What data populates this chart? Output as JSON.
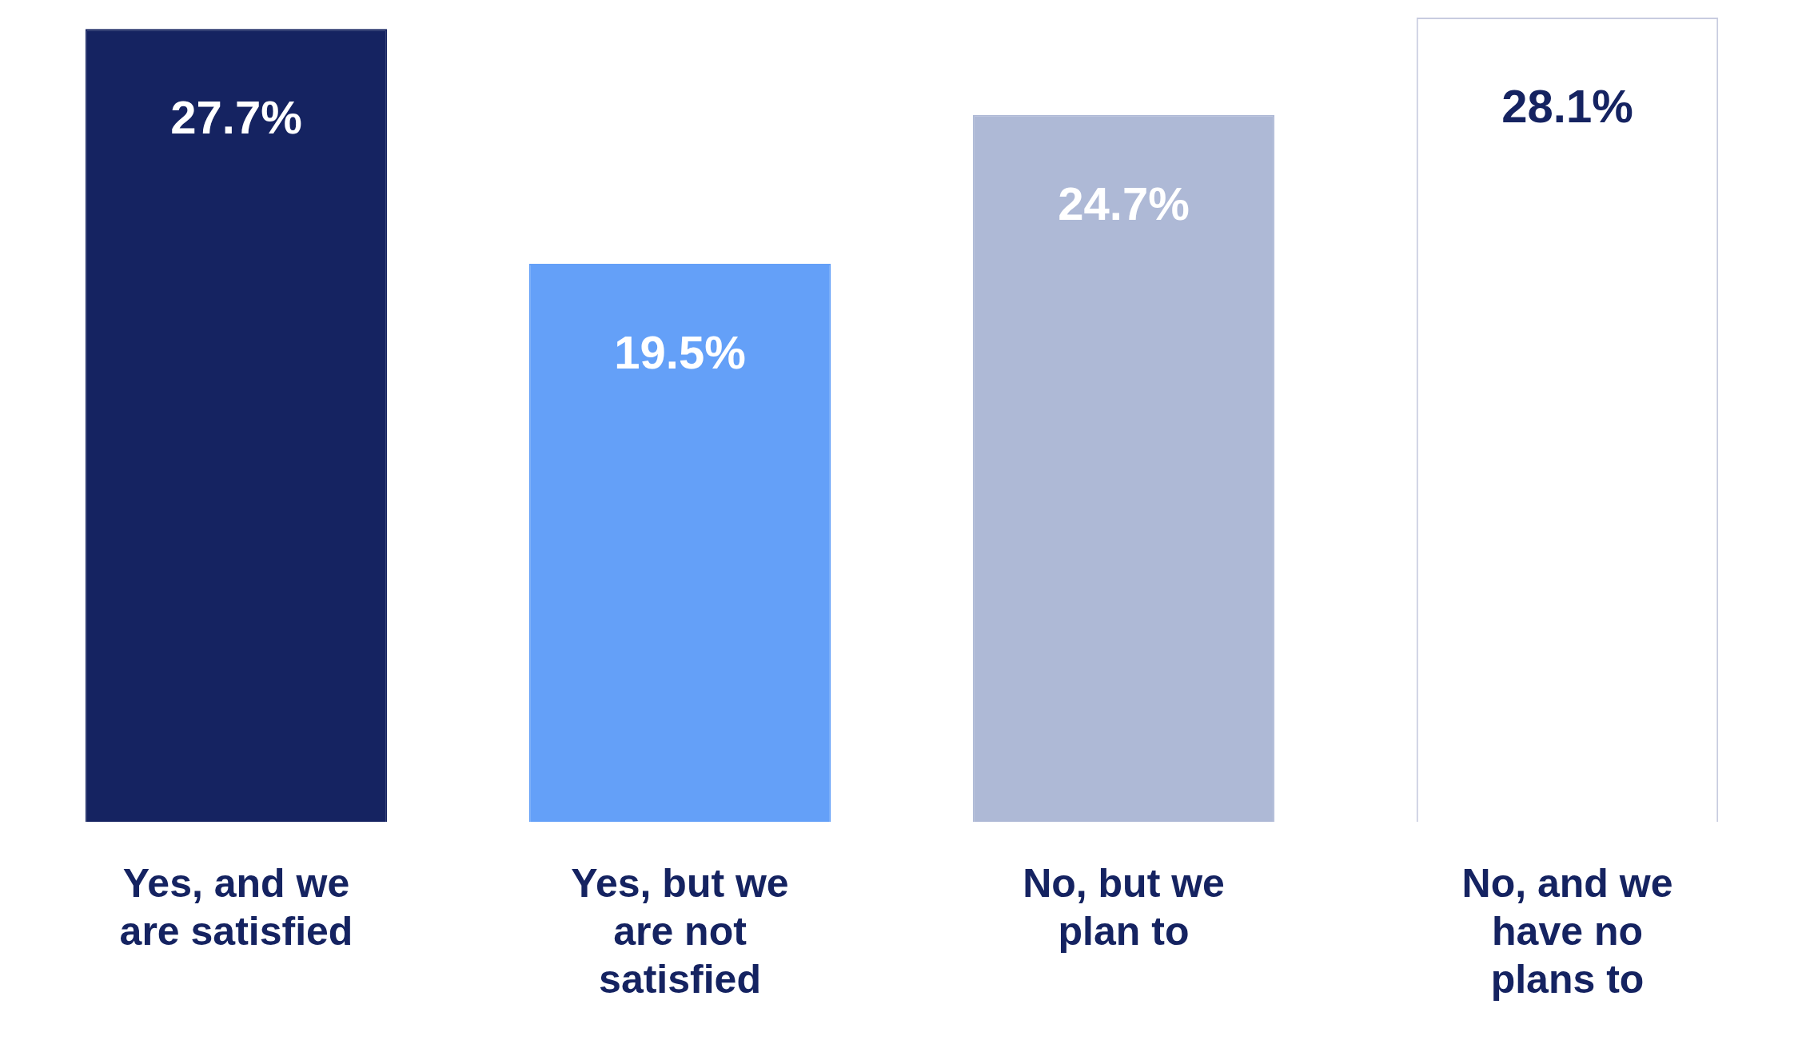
{
  "chart_data": {
    "type": "bar",
    "categories": [
      "Yes, and we are satisfied",
      "Yes, but we are not satisfied",
      "No, but we plan to",
      "No, and we have no plans to"
    ],
    "values": [
      27.7,
      19.5,
      24.7,
      28.1
    ],
    "value_labels": [
      "27.7%",
      "19.5%",
      "24.7%",
      "28.1%"
    ],
    "colors": [
      "#152361",
      "#64a0f8",
      "#aeb9d6",
      "#ffffff"
    ],
    "grid": false,
    "legend": false,
    "tick_labels": "x"
  }
}
